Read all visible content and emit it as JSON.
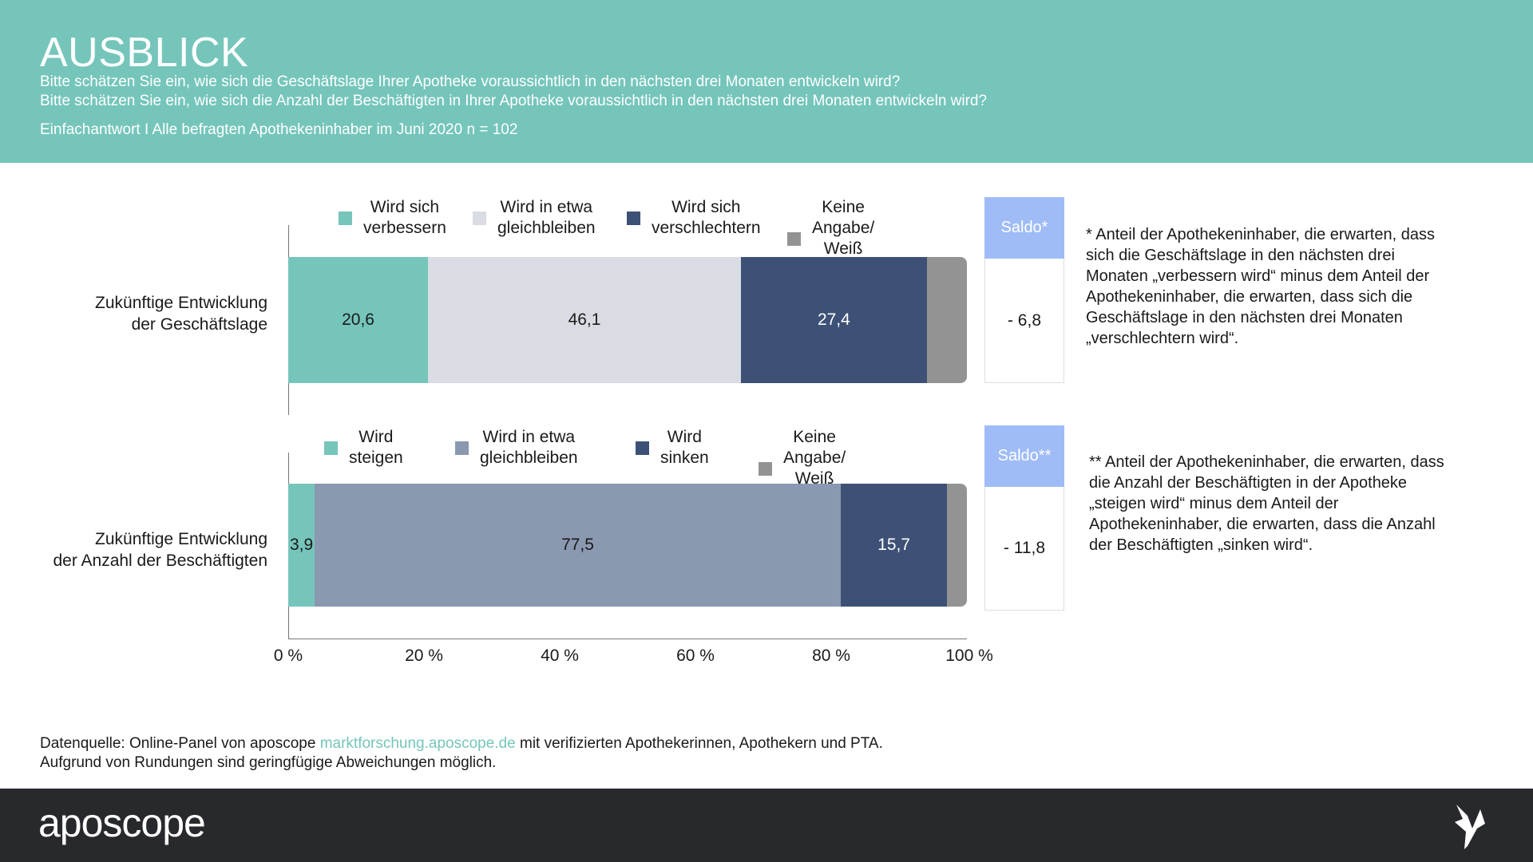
{
  "header": {
    "title": "AUSBLICK",
    "q1": "Bitte schätzen Sie ein, wie sich die Geschäftslage Ihrer Apotheke voraussichtlich in den nächsten drei Monaten entwickeln wird?",
    "q2": "Bitte schätzen Sie ein, wie sich die Anzahl der Beschäftigten in Ihrer Apotheke voraussichtlich in den nächsten drei Monaten entwickeln wird?",
    "base": "Einfachantwort I Alle befragten Apothekeninhaber im Juni 2020 n = 102"
  },
  "chart_data": {
    "type": "bar",
    "stacked": true,
    "orientation": "horizontal",
    "xlim": [
      0,
      100
    ],
    "xticks": [
      "0 %",
      "20 %",
      "40 %",
      "60 %",
      "80 %",
      "100 %"
    ],
    "colors": [
      "#75c5bb",
      "#d9dce3",
      "#8a98b0",
      "#3d5176",
      "#939393"
    ],
    "charts": [
      {
        "category": "Zukünftige Entwicklung der Geschäftslage",
        "label_lines": [
          "Zukünftige Entwicklung",
          "der Geschäftslage"
        ],
        "legend": [
          [
            "Wird sich",
            "verbessern"
          ],
          [
            "Wird in etwa",
            "gleichbleiben"
          ],
          [
            "Wird sich",
            "verschlechtern"
          ],
          [
            "Keine Angabe/",
            "Weiß nicht"
          ]
        ],
        "series": [
          {
            "name": "Wird sich verbessern",
            "value": 20.6,
            "label": "20,6",
            "color": "#75c5bb",
            "text": "#1a1a1a"
          },
          {
            "name": "Wird in etwa gleichbleiben",
            "value": 46.1,
            "label": "46,1",
            "color": "#d9dce3",
            "text": "#1a1a1a"
          },
          {
            "name": "Wird sich verschlechtern",
            "value": 27.4,
            "label": "27,4",
            "color": "#3d5176",
            "text": "#fff"
          },
          {
            "name": "Keine Angabe/Weiß nicht",
            "value": 5.9,
            "label": "",
            "color": "#939393",
            "text": "#fff"
          }
        ],
        "saldo_label": "Saldo*",
        "saldo": "- 6,8"
      },
      {
        "category": "Zukünftige Entwicklung der Anzahl der Beschäftigten",
        "label_lines": [
          "Zukünftige Entwicklung",
          "der Anzahl der Beschäftigten"
        ],
        "legend": [
          [
            "Wird",
            "steigen"
          ],
          [
            "Wird in etwa",
            "gleichbleiben"
          ],
          [
            "Wird",
            "sinken"
          ],
          [
            "Keine Angabe/",
            "Weiß nicht"
          ]
        ],
        "series": [
          {
            "name": "Wird steigen",
            "value": 3.9,
            "label": "3,9",
            "color": "#75c5bb",
            "text": "#1a1a1a"
          },
          {
            "name": "Wird in etwa gleichbleiben",
            "value": 77.5,
            "label": "77,5",
            "color": "#8a98b0",
            "text": "#1a1a1a"
          },
          {
            "name": "Wird sinken",
            "value": 15.7,
            "label": "15,7",
            "color": "#3d5176",
            "text": "#fff"
          },
          {
            "name": "Keine Angabe/Weiß nicht",
            "value": 2.9,
            "label": "",
            "color": "#939393",
            "text": "#fff"
          }
        ],
        "saldo_label": "Saldo**",
        "saldo": "- 11,8"
      }
    ]
  },
  "notes": {
    "n1": [
      "* Anteil der Apothekeninhaber, die erwarten, dass",
      "sich die Geschäftslage in den nächsten drei",
      "Monaten „verbessern wird“ minus dem Anteil der",
      "Apothekeninhaber, die erwarten, dass sich die",
      "Geschäftslage in den nächsten drei Monaten",
      "„verschlechtern wird“."
    ],
    "n2": [
      "** Anteil der Apothekeninhaber, die erwarten, dass",
      "die Anzahl der Beschäftigten in der Apotheke",
      "„steigen wird“ minus dem Anteil der",
      "Apothekeninhaber, die erwarten, dass die Anzahl",
      "der Beschäftigten „sinken wird“."
    ]
  },
  "source": {
    "prefix": "Datenquelle: Online-Panel von aposcope ",
    "link": "marktforschung.aposcope.de",
    "suffix": " mit verifizierten Apothekerinnen, Apothekern und PTA.",
    "line2": "Aufgrund von Rundungen sind geringfügige Abweichungen möglich."
  },
  "footer": {
    "logo": "aposcope"
  }
}
